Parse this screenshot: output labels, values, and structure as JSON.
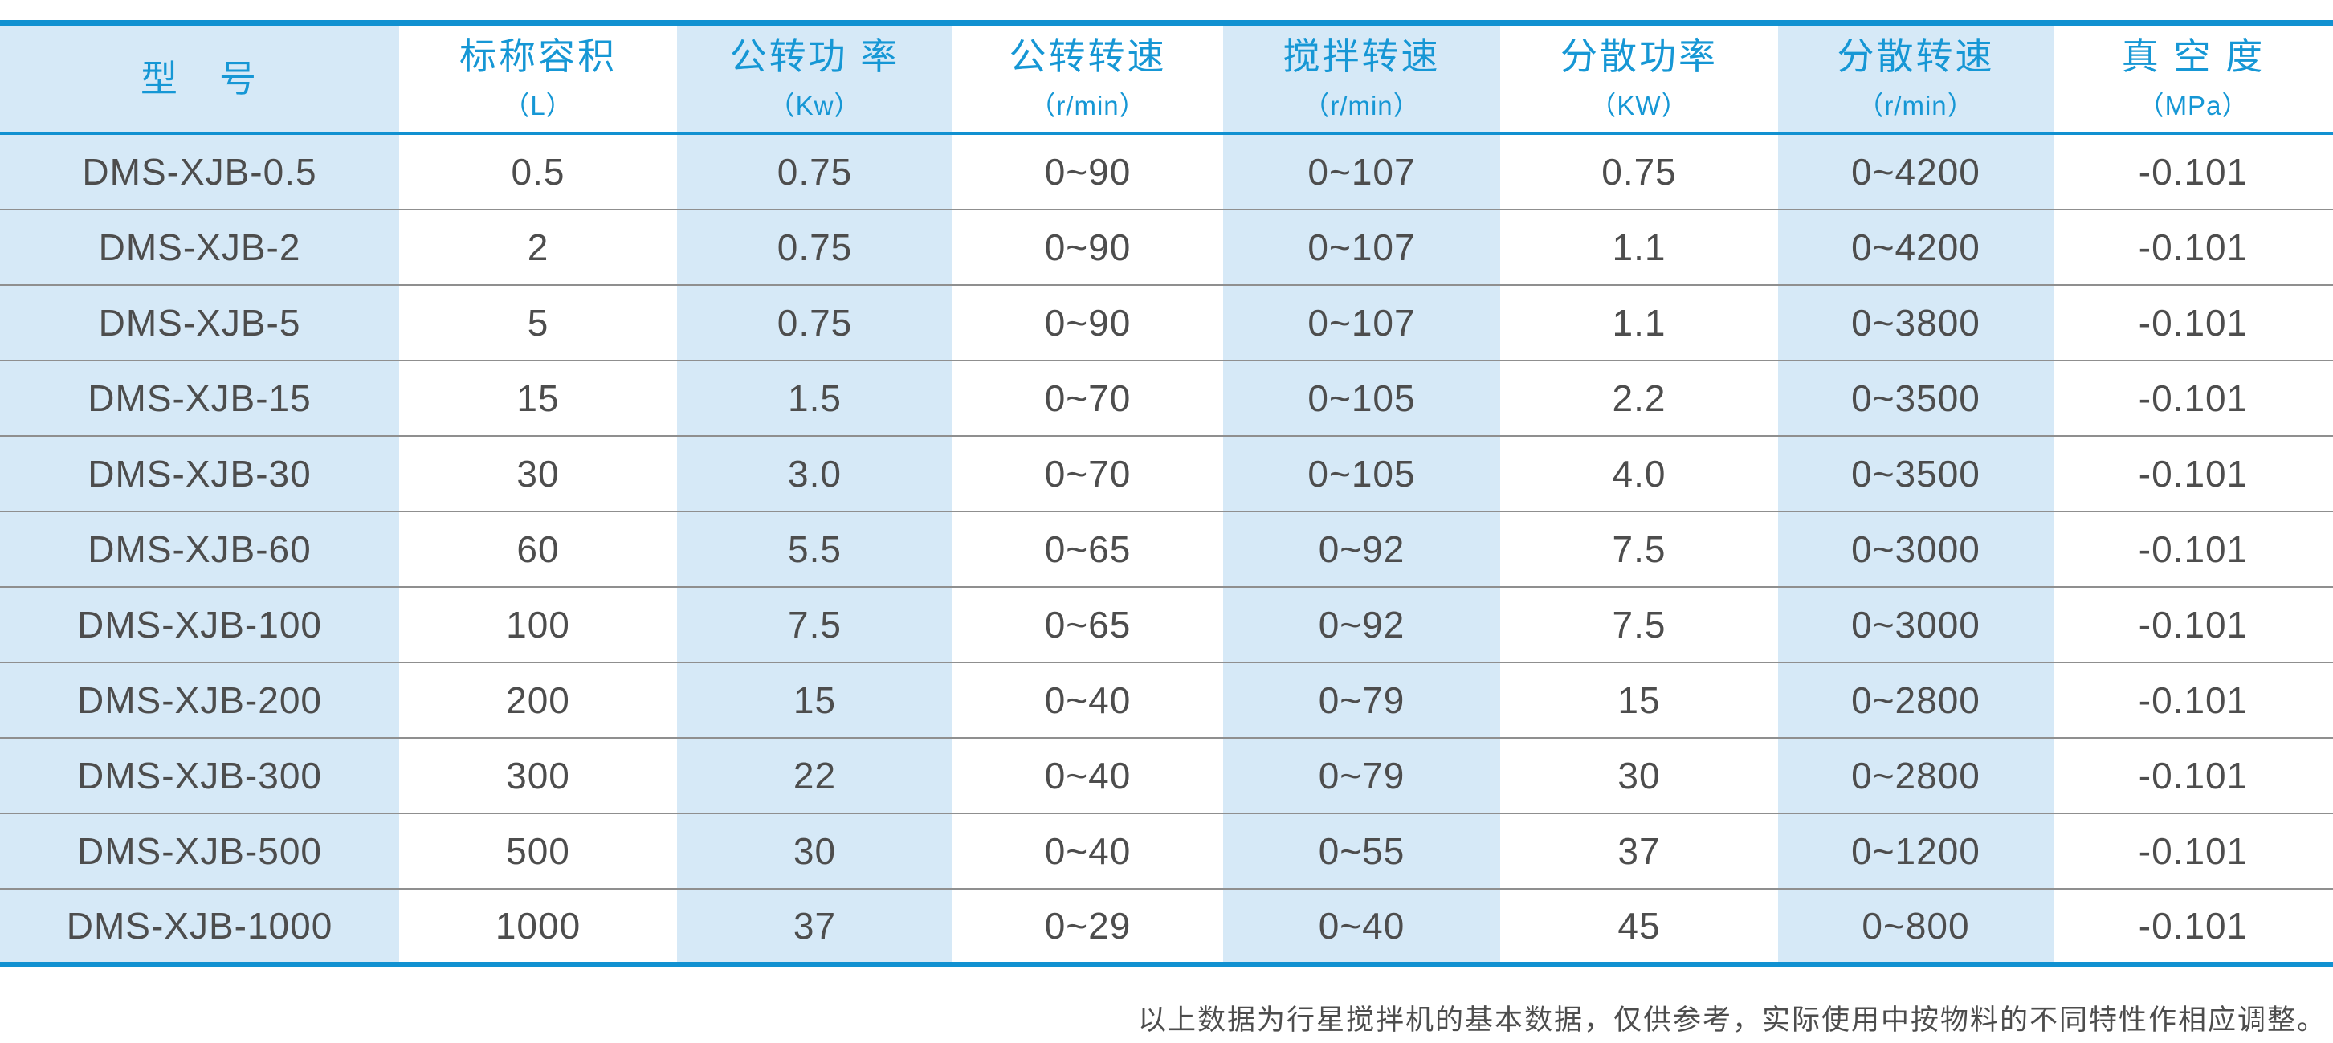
{
  "colors": {
    "accent": "#1191d1",
    "header_text": "#1697d5",
    "stripe": "#d6e9f7",
    "text": "#4d4d4d",
    "separator": "#8f8f8f"
  },
  "table": {
    "headers": [
      {
        "label": "型　号",
        "unit": ""
      },
      {
        "label": "标称容积",
        "unit": "（L）"
      },
      {
        "label": "公转功 率",
        "unit": "（Kw）"
      },
      {
        "label": "公转转速",
        "unit": "（r/min）"
      },
      {
        "label": "搅拌转速",
        "unit": "（r/min）"
      },
      {
        "label": "分散功率",
        "unit": "（KW）"
      },
      {
        "label": "分散转速",
        "unit": "（r/min）"
      },
      {
        "label": "真 空 度",
        "unit": "（MPa）"
      }
    ],
    "rows": [
      [
        "DMS-XJB-0.5",
        "0.5",
        "0.75",
        "0~90",
        "0~107",
        "0.75",
        "0~4200",
        "-0.101"
      ],
      [
        "DMS-XJB-2",
        "2",
        "0.75",
        "0~90",
        "0~107",
        "1.1",
        "0~4200",
        "-0.101"
      ],
      [
        "DMS-XJB-5",
        "5",
        "0.75",
        "0~90",
        "0~107",
        "1.1",
        "0~3800",
        "-0.101"
      ],
      [
        "DMS-XJB-15",
        "15",
        "1.5",
        "0~70",
        "0~105",
        "2.2",
        "0~3500",
        "-0.101"
      ],
      [
        "DMS-XJB-30",
        "30",
        "3.0",
        "0~70",
        "0~105",
        "4.0",
        "0~3500",
        "-0.101"
      ],
      [
        "DMS-XJB-60",
        "60",
        "5.5",
        "0~65",
        "0~92",
        "7.5",
        "0~3000",
        "-0.101"
      ],
      [
        "DMS-XJB-100",
        "100",
        "7.5",
        "0~65",
        "0~92",
        "7.5",
        "0~3000",
        "-0.101"
      ],
      [
        "DMS-XJB-200",
        "200",
        "15",
        "0~40",
        "0~79",
        "15",
        "0~2800",
        "-0.101"
      ],
      [
        "DMS-XJB-300",
        "300",
        "22",
        "0~40",
        "0~79",
        "30",
        "0~2800",
        "-0.101"
      ],
      [
        "DMS-XJB-500",
        "500",
        "30",
        "0~40",
        "0~55",
        "37",
        "0~1200",
        "-0.101"
      ],
      [
        "DMS-XJB-1000",
        "1000",
        "37",
        "0~29",
        "0~40",
        "45",
        "0~800",
        "-0.101"
      ]
    ]
  },
  "footer": {
    "note": "以上数据为行星搅拌机的基本数据，仅供参考，实际使用中按物料的不同特性作相应调整。"
  }
}
